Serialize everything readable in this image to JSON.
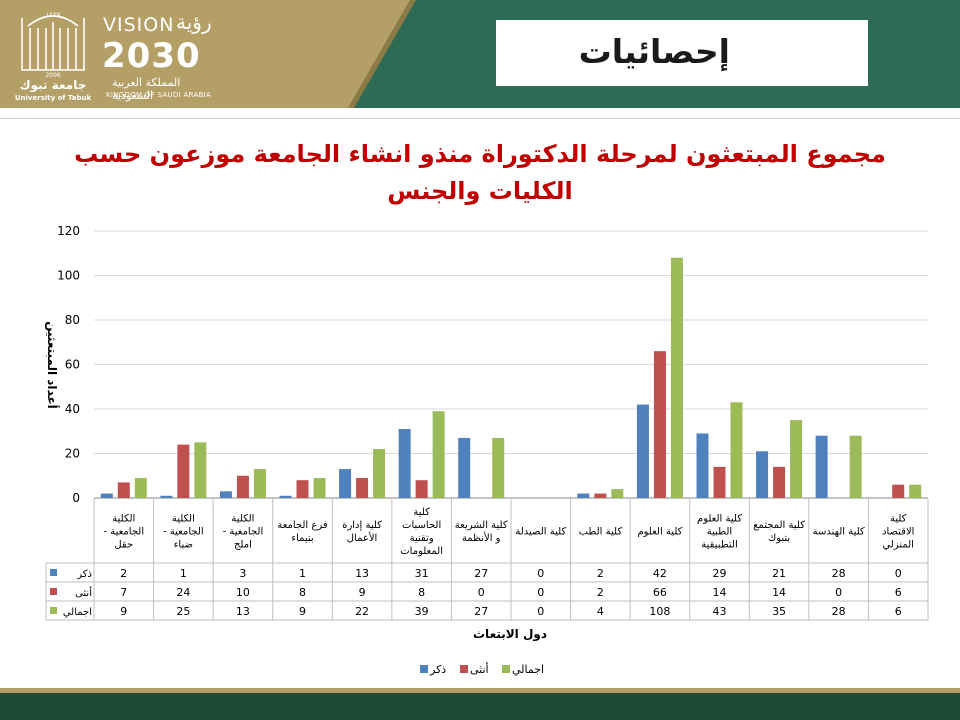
{
  "header": {
    "title": "إحصائيات",
    "university_ar": "جامعة تبوك",
    "university_en": "University of Tabuk",
    "university_year": "2006",
    "university_hijri": "١٤٢٧",
    "vision_word": "VISION",
    "vision_ar": "رؤية",
    "vision_year": "2030",
    "kingdom_ar": "المملكة العربية السعودية",
    "kingdom_en": "KINGDOM OF SAUDI ARABIA"
  },
  "colors": {
    "male": "#4f81bd",
    "female": "#c0504d",
    "total": "#9bbb59",
    "title": "#c00000",
    "header": "#2e6b55",
    "gold": "#b49f66"
  },
  "chart_data": {
    "type": "bar",
    "title": "مجموع المبتعثون لمرحلة الدكتوراة منذو انشاء الجامعة موزعون حسب الكليات والجنس",
    "ylabel": "أعداد المبتعثين",
    "xlabel": "دول الابتعاث",
    "ylim": [
      0,
      120
    ],
    "yticks": [
      0,
      20,
      40,
      60,
      80,
      100,
      120
    ],
    "grid": true,
    "legend_position": "bottom",
    "categories": [
      [
        "الكلية",
        "الجامعية -",
        "حقل"
      ],
      [
        "الكلية",
        "الجامعية -",
        "ضباء"
      ],
      [
        "الكلية",
        "الجامعية -",
        "املج"
      ],
      [
        "فرع الجامعة",
        "بتيماء"
      ],
      [
        "كلية إدارة",
        "الأعمال"
      ],
      [
        "كلية",
        "الحاسبات",
        "وتقنية",
        "المعلومات"
      ],
      [
        "كلية الشريعة",
        "و الأنظمة"
      ],
      [
        "كلية الصيدلة"
      ],
      [
        "كلية الطب"
      ],
      [
        "كلية العلوم"
      ],
      [
        "كلية العلوم",
        "الطبية",
        "التطبيقية"
      ],
      [
        "كلية المجتمع",
        "بتبوك"
      ],
      [
        "كلية الهندسة"
      ],
      [
        "كلية",
        "الاقتصاد",
        "المنزلي"
      ]
    ],
    "series": [
      {
        "name": "ذكر",
        "color": "#4f81bd",
        "values": [
          2,
          1,
          3,
          1,
          13,
          31,
          27,
          0,
          2,
          42,
          29,
          21,
          28,
          0
        ]
      },
      {
        "name": "أنثى",
        "color": "#c0504d",
        "values": [
          7,
          24,
          10,
          8,
          9,
          8,
          0,
          0,
          2,
          66,
          14,
          14,
          0,
          6
        ]
      },
      {
        "name": "اجمالي",
        "color": "#9bbb59",
        "values": [
          9,
          25,
          13,
          9,
          22,
          39,
          27,
          0,
          4,
          108,
          43,
          35,
          28,
          6
        ]
      }
    ]
  }
}
